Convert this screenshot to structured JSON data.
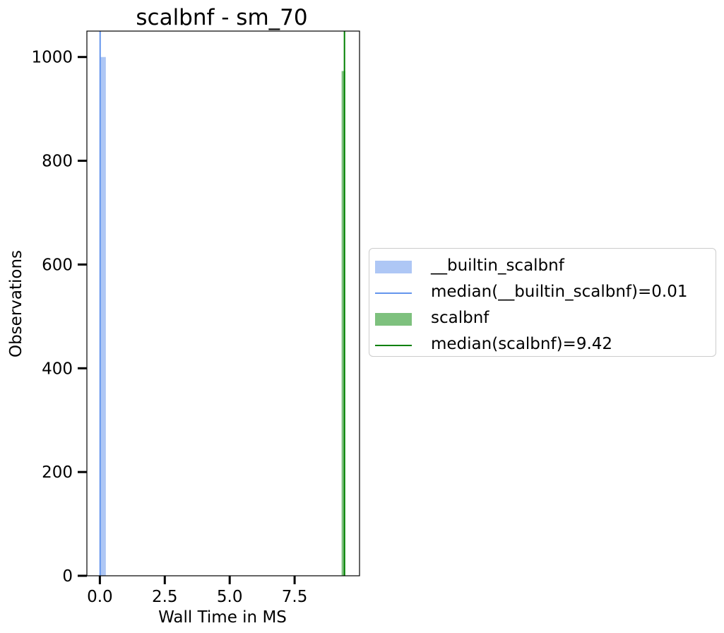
{
  "chart_data": {
    "type": "histogram",
    "title": "scalbnf - sm_70",
    "xlabel": "Wall Time in MS",
    "ylabel": "Observations",
    "xlim": [
      -0.5,
      10.0
    ],
    "ylim": [
      0,
      1050
    ],
    "xticks": [
      "0.0",
      "2.5",
      "5.0",
      "7.5"
    ],
    "xtick_values": [
      0,
      2.5,
      5.0,
      7.5
    ],
    "yticks": [
      "0",
      "200",
      "400",
      "600",
      "800",
      "1000"
    ],
    "ytick_values": [
      0,
      200,
      400,
      600,
      800,
      1000
    ],
    "grid": false,
    "legend_position": "right, outside plot",
    "series": [
      {
        "name": "__builtin_scalbnf",
        "color": "#aec7f5",
        "bins": [
          {
            "x0": 0.0,
            "x1": 0.23,
            "count": 1000
          }
        ]
      },
      {
        "name": "scalbnf",
        "color": "#7ec17e",
        "bins": [
          {
            "x0": 9.31,
            "x1": 9.45,
            "count": 973
          }
        ]
      }
    ],
    "median_lines": [
      {
        "name": "median(__builtin_scalbnf)=0.01",
        "value": 0.01,
        "color": "#6495ed"
      },
      {
        "name": "median(scalbnf)=9.42",
        "value": 9.42,
        "color": "#008000"
      }
    ],
    "legend": [
      {
        "label": "__builtin_scalbnf",
        "kind": "patch",
        "color": "#aec7f5"
      },
      {
        "label": "median(__builtin_scalbnf)=0.01",
        "kind": "line",
        "color": "#6495ed"
      },
      {
        "label": "scalbnf",
        "kind": "patch",
        "color": "#7ec17e"
      },
      {
        "label": "median(scalbnf)=9.42",
        "kind": "line",
        "color": "#008000"
      }
    ]
  }
}
